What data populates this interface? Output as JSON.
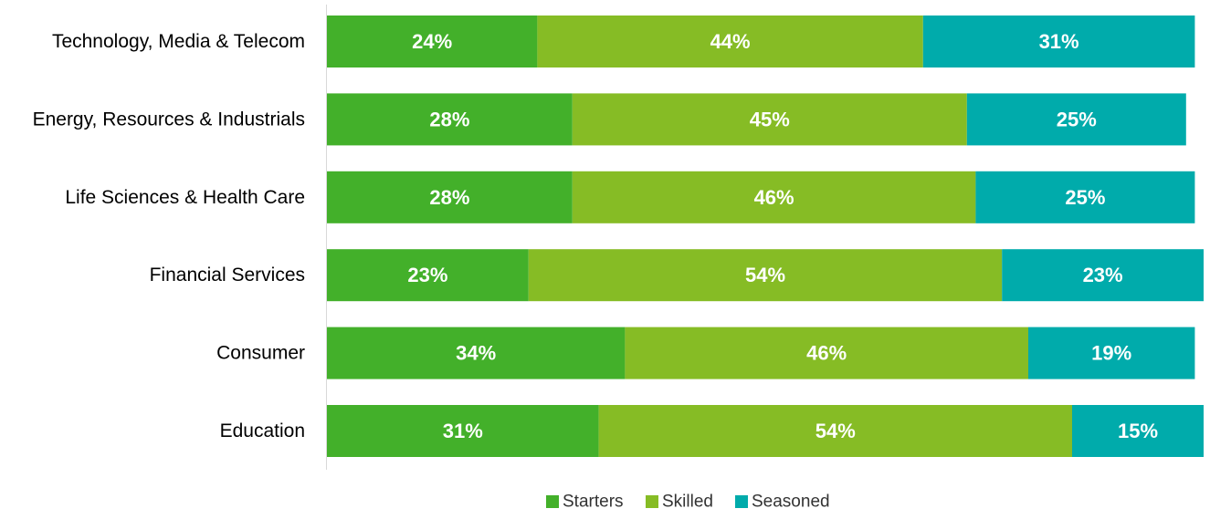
{
  "chart_data": {
    "type": "bar",
    "orientation": "horizontal",
    "stacked": true,
    "categories": [
      "Technology, Media & Telecom",
      "Energy, Resources & Industrials",
      "Life Sciences & Health Care",
      "Financial Services",
      "Consumer",
      "Education"
    ],
    "series": [
      {
        "name": "Starters",
        "color": "#43b02a",
        "values": [
          24,
          28,
          28,
          23,
          34,
          31
        ]
      },
      {
        "name": "Skilled",
        "color": "#86bc25",
        "values": [
          44,
          45,
          46,
          54,
          46,
          54
        ]
      },
      {
        "name": "Seasoned",
        "color": "#00abab",
        "values": [
          31,
          25,
          25,
          23,
          19,
          15
        ]
      }
    ],
    "value_suffix": "%",
    "xlim": [
      0,
      100
    ],
    "title": "",
    "xlabel": "",
    "ylabel": "",
    "grid": false,
    "legend_position": "bottom-center"
  }
}
